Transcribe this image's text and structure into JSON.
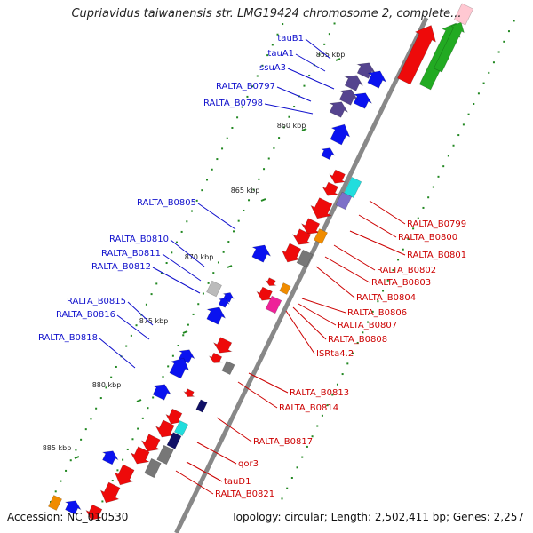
{
  "title": "Cupriavidus taiwanensis str. LMG19424 chromosome 2, complete...",
  "footer": {
    "accession": "Accession: NC_010530",
    "topology": "Topology: circular; Length: 2,502,411 bp; Genes: 2,257"
  },
  "colors": {
    "blue": "#0a12f0",
    "red": "#ee0a0a",
    "purple": "#55448f",
    "slate": "#7d70c8",
    "gray": "#777777",
    "lightgray": "#bbbbbb",
    "navy": "#101066",
    "orange": "#f08c00",
    "cyan": "#22dddd",
    "magenta": "#ee2299",
    "green": "#22aa22",
    "pink": "#ffc8d2",
    "label_blue": "#1010cc",
    "label_red": "#cc0000",
    "backbone": "#888888",
    "dot": "#228822"
  },
  "scale_labels": [
    "855 kbp",
    "860 kbp",
    "865 kbp",
    "870 kbp",
    "875 kbp",
    "880 kbp",
    "885 kbp"
  ],
  "left_labels": [
    "tauB1",
    "tauA1",
    "ssuA3",
    "RALTA_B0797",
    "RALTA_B0798",
    "RALTA_B0805",
    "RALTA_B0810",
    "RALTA_B0811",
    "RALTA_B0812",
    "RALTA_B0815",
    "RALTA_B0816",
    "RALTA_B0818"
  ],
  "right_labels": [
    "RALTA_B0799",
    "RALTA_B0800",
    "RALTA_B0801",
    "RALTA_B0802",
    "RALTA_B0803",
    "RALTA_B0804",
    "RALTA_B0806",
    "RALTA_B0807",
    "RALTA_B0808",
    "ISRta4.2",
    "RALTA_B0813",
    "RALTA_B0814",
    "RALTA_B0817",
    "qor3",
    "tauD1",
    "RALTA_B0821"
  ]
}
